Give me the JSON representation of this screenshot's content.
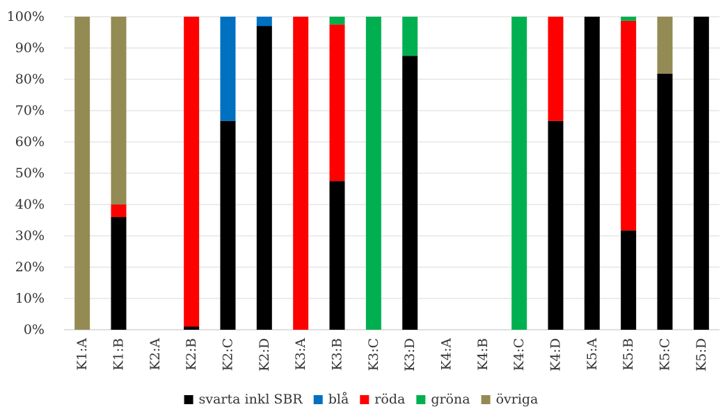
{
  "chart_data": {
    "type": "bar",
    "stacked": true,
    "categories": [
      "K1:A",
      "K1:B",
      "K2:A",
      "K2:B",
      "K2:C",
      "K2:D",
      "K3:A",
      "K3:B",
      "K3:C",
      "K3:D",
      "K4:A",
      "K4:B",
      "K4:C",
      "K4:D",
      "K5:A",
      "K5:B",
      "K5:C",
      "K5:D"
    ],
    "series": [
      {
        "name": "svarta inkl SBR",
        "color": "#000000",
        "values": [
          0,
          36,
          0,
          1,
          66.7,
          97,
          0,
          47.5,
          0,
          87.5,
          0,
          0,
          0,
          66.7,
          100,
          31.7,
          81.8,
          100
        ]
      },
      {
        "name": "blå",
        "color": "#0070C0",
        "values": [
          0,
          0,
          0,
          0,
          33.3,
          3,
          0,
          0,
          0,
          0,
          0,
          0,
          0,
          0,
          0,
          0,
          0,
          0
        ]
      },
      {
        "name": "röda",
        "color": "#FF0000",
        "values": [
          0,
          4,
          0,
          99,
          0,
          0,
          100,
          50,
          0,
          0,
          0,
          0,
          0,
          33.3,
          0,
          67,
          0,
          0
        ]
      },
      {
        "name": "gröna",
        "color": "#00B050",
        "values": [
          0,
          0,
          0,
          0,
          0,
          0,
          0,
          2.5,
          100,
          12.5,
          0,
          0,
          100,
          0,
          0,
          1.3,
          0,
          0
        ]
      },
      {
        "name": "övriga",
        "color": "#948A54",
        "values": [
          100,
          60,
          0,
          0,
          0,
          0,
          0,
          0,
          0,
          0,
          0,
          0,
          0,
          0,
          0,
          0,
          18.2,
          0
        ]
      }
    ],
    "y_ticks": [
      "0%",
      "10%",
      "20%",
      "30%",
      "40%",
      "50%",
      "60%",
      "70%",
      "80%",
      "90%",
      "100%"
    ],
    "ylim": [
      0,
      100
    ],
    "grid": true,
    "legend_position": "bottom",
    "title": "",
    "xlabel": "",
    "ylabel": ""
  }
}
